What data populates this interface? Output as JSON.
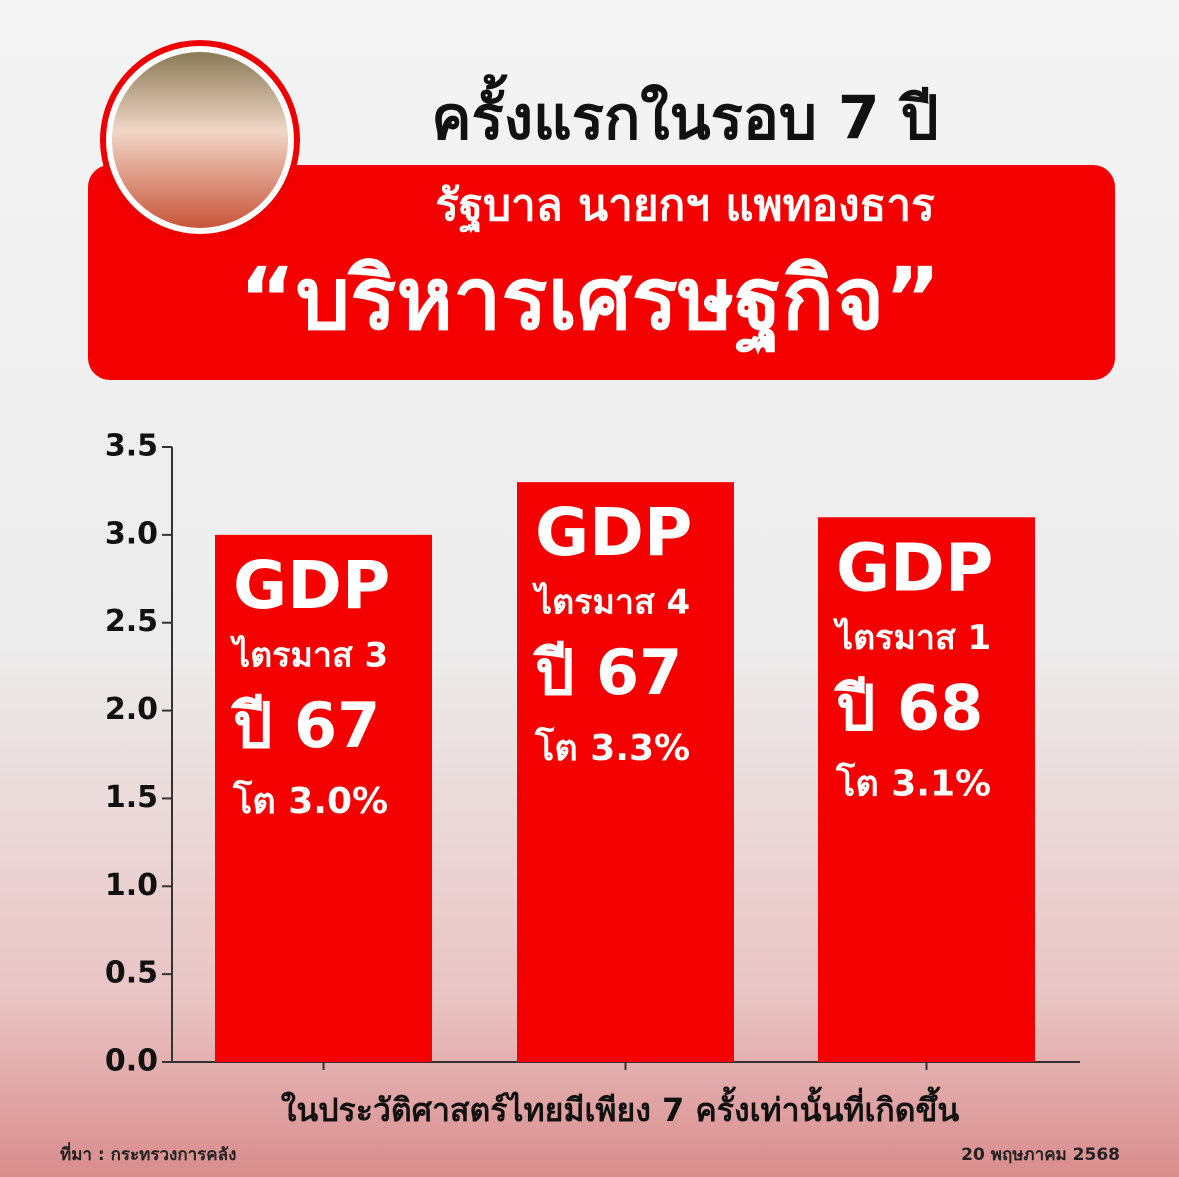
{
  "chart_data": {
    "type": "bar",
    "title": "ครั้งแรกในรอบ 7 ปี",
    "subtitle": "รัฐบาล นายกฯ แพทองธาร",
    "headline": "“บริหารเศรษฐกิจ”",
    "categories": [
      null,
      null,
      null
    ],
    "bar_texts": [
      [
        "GDP",
        "ไตรมาส 3",
        "ปี 67"
      ],
      [
        "GDP",
        "ไตรมาส 4",
        "ปี 67"
      ],
      [
        "GDP",
        "ไตรมาส 1",
        "ปี 68"
      ]
    ],
    "values": [
      3.0,
      3.3,
      3.1
    ],
    "value_labels": [
      "โต 3.0%",
      "โต 3.3%",
      "โต 3.1%"
    ],
    "color": "#f40000",
    "ylim": [
      0,
      3.5
    ],
    "yticks": [
      {
        "value": 0,
        "label": "0.0"
      },
      0.5,
      {
        "value": 1,
        "label": "1.0"
      },
      1.5,
      {
        "value": 2,
        "label": "2.0"
      },
      2.5,
      {
        "value": 3,
        "label": "3.0"
      },
      3.5
    ],
    "footnote": "ในประวัติศาสตร์ไทยมีเพียง 7 ครั้งเท่านั้นที่เกิดขึ้น",
    "source": "ที่มา : กระทรวงการคลัง",
    "date": "20 พฤษภาคม 2568"
  }
}
